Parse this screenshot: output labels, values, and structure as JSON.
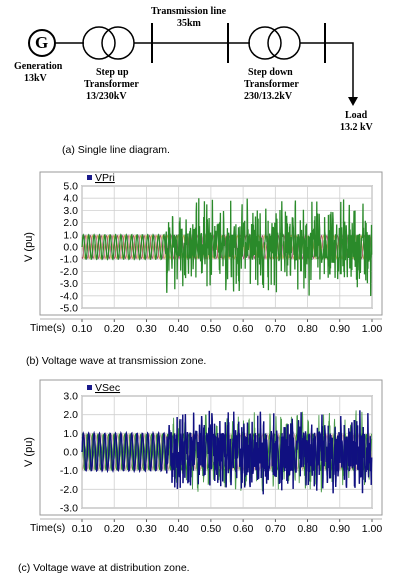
{
  "diagram": {
    "generator_symbol": "G",
    "generation_label_1": "Generation",
    "generation_label_2": "13kV",
    "tx_line_label_1": "Transmission line",
    "tx_line_label_2": "35km",
    "stepup_label_1": "Step up",
    "stepup_label_2": "Transformer",
    "stepup_label_3": "13/230kV",
    "stepdown_label_1": "Step down",
    "stepdown_label_2": "Transformer",
    "stepdown_label_3": "230/13.2kV",
    "load_label_1": "Load",
    "load_label_2": "13.2 kV"
  },
  "captions": {
    "a": "(a) Single line diagram.",
    "b": "(b) Voltage wave at transmission zone.",
    "c": "(c) Voltage wave at distribution zone."
  },
  "chart_data": [
    {
      "type": "line",
      "legend": "VPri",
      "ylabel": "V (pu)",
      "xlabel": "Time(s)",
      "xlim": [
        0.1,
        1.0
      ],
      "ylim": [
        -5.0,
        5.0
      ],
      "x_ticks": [
        "0.10",
        "0.20",
        "0.30",
        "0.40",
        "0.50",
        "0.60",
        "0.70",
        "0.80",
        "0.90",
        "1.00"
      ],
      "y_ticks": [
        "5.0",
        "4.0",
        "3.0",
        "2.0",
        "1.0",
        "0.0",
        "-1.0",
        "-2.0",
        "-3.0",
        "-4.0",
        "-5.0"
      ],
      "grid": true,
      "series": [
        {
          "name": "VPri",
          "color": "#1a7a1a",
          "description": "3-phase voltage ~±1.0 pu steady; transient spikes up to about ±4.5 pu after 0.35 s"
        }
      ],
      "colors": {
        "phase_a": "#2a8a2a",
        "phase_b": "#c8a64a",
        "phase_c": "#a04a6a",
        "legend_marker": "#1a1a8c"
      }
    },
    {
      "type": "line",
      "legend": "VSec",
      "ylabel": "V (pu)",
      "xlabel": "Time(s)",
      "xlim": [
        0.1,
        1.0
      ],
      "ylim": [
        -3.0,
        3.0
      ],
      "x_ticks": [
        "0.10",
        "0.20",
        "0.30",
        "0.40",
        "0.50",
        "0.60",
        "0.70",
        "0.80",
        "0.90",
        "1.00"
      ],
      "y_ticks": [
        "3.0",
        "2.0",
        "1.0",
        "0.0",
        "-1.0",
        "-2.0",
        "-3.0"
      ],
      "grid": true,
      "series": [
        {
          "name": "VSec",
          "color": "#101080",
          "description": "voltage ~±1.0 pu steady; transients up to about ±2.5 pu after 0.35 s"
        }
      ],
      "colors": {
        "phase_a": "#101080",
        "phase_b": "#2a8a2a",
        "phase_c": "#c89a9a",
        "legend_marker": "#1a1a8c"
      }
    }
  ]
}
